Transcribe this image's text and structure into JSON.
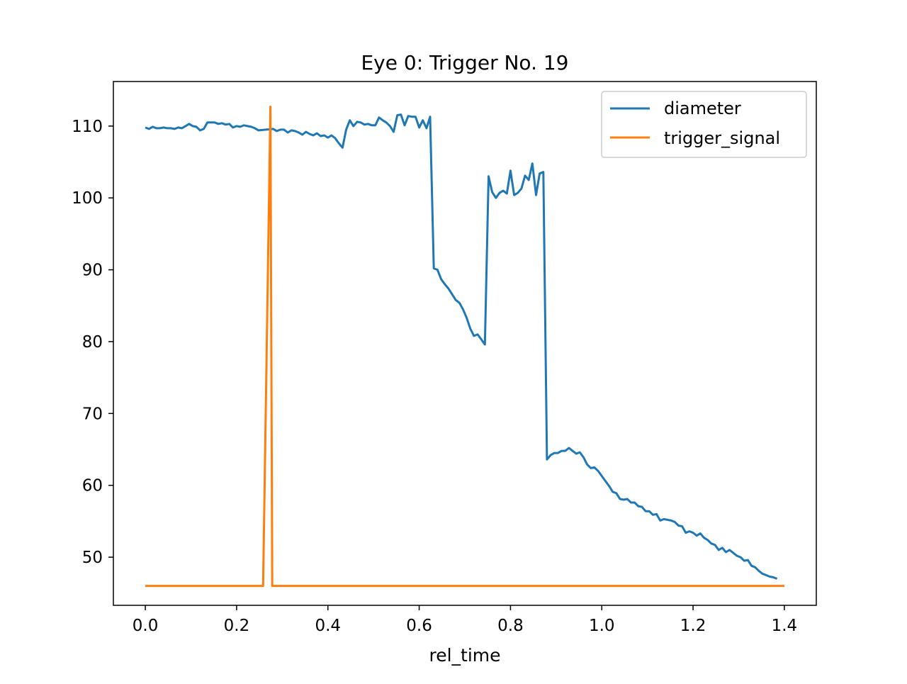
{
  "chart_data": {
    "type": "line",
    "title": "Eye 0: Trigger No. 19",
    "xlabel": "rel_time",
    "ylabel": "",
    "xlim": [
      -0.07,
      1.47
    ],
    "ylim": [
      43.3,
      116.2
    ],
    "xticks": [
      0.0,
      0.2,
      0.4,
      0.6,
      0.8,
      1.0,
      1.2,
      1.4
    ],
    "xtick_labels": [
      "0.0",
      "0.2",
      "0.4",
      "0.6",
      "0.8",
      "1.0",
      "1.2",
      "1.4"
    ],
    "yticks": [
      50,
      60,
      70,
      80,
      90,
      100,
      110
    ],
    "ytick_labels": [
      "50",
      "60",
      "70",
      "80",
      "90",
      "100",
      "110"
    ],
    "grid": false,
    "legend_position": "top-right",
    "series": [
      {
        "name": "diameter",
        "color": "#1f77b4",
        "points": [
          [
            0.0,
            109.8
          ],
          [
            0.008,
            109.6
          ],
          [
            0.016,
            109.9
          ],
          [
            0.024,
            109.7
          ],
          [
            0.032,
            109.7
          ],
          [
            0.04,
            109.8
          ],
          [
            0.048,
            109.7
          ],
          [
            0.056,
            109.7
          ],
          [
            0.064,
            109.6
          ],
          [
            0.072,
            109.8
          ],
          [
            0.08,
            109.7
          ],
          [
            0.088,
            110.0
          ],
          [
            0.096,
            110.3
          ],
          [
            0.104,
            110.0
          ],
          [
            0.112,
            109.9
          ],
          [
            0.12,
            109.4
          ],
          [
            0.128,
            109.6
          ],
          [
            0.136,
            110.5
          ],
          [
            0.144,
            110.5
          ],
          [
            0.152,
            110.5
          ],
          [
            0.16,
            110.3
          ],
          [
            0.168,
            110.4
          ],
          [
            0.176,
            110.2
          ],
          [
            0.184,
            110.3
          ],
          [
            0.192,
            109.8
          ],
          [
            0.2,
            110.0
          ],
          [
            0.208,
            109.9
          ],
          [
            0.216,
            110.1
          ],
          [
            0.224,
            110.0
          ],
          [
            0.232,
            109.9
          ],
          [
            0.24,
            109.7
          ],
          [
            0.248,
            109.4
          ],
          [
            0.28,
            109.6
          ],
          [
            0.288,
            109.3
          ],
          [
            0.296,
            109.5
          ],
          [
            0.304,
            109.5
          ],
          [
            0.312,
            109.1
          ],
          [
            0.32,
            109.4
          ],
          [
            0.328,
            109.3
          ],
          [
            0.336,
            109.1
          ],
          [
            0.344,
            108.8
          ],
          [
            0.352,
            109.2
          ],
          [
            0.36,
            108.9
          ],
          [
            0.368,
            108.7
          ],
          [
            0.376,
            109.0
          ],
          [
            0.384,
            108.6
          ],
          [
            0.392,
            108.7
          ],
          [
            0.4,
            108.4
          ],
          [
            0.408,
            108.7
          ],
          [
            0.416,
            108.3
          ],
          [
            0.424,
            107.6
          ],
          [
            0.432,
            107.0
          ],
          [
            0.44,
            109.5
          ],
          [
            0.448,
            110.8
          ],
          [
            0.456,
            110.0
          ],
          [
            0.464,
            110.6
          ],
          [
            0.472,
            110.5
          ],
          [
            0.48,
            110.2
          ],
          [
            0.488,
            110.3
          ],
          [
            0.496,
            110.1
          ],
          [
            0.504,
            110.1
          ],
          [
            0.512,
            111.2
          ],
          [
            0.52,
            110.8
          ],
          [
            0.528,
            110.5
          ],
          [
            0.536,
            110.0
          ],
          [
            0.544,
            109.2
          ],
          [
            0.552,
            111.5
          ],
          [
            0.56,
            111.6
          ],
          [
            0.568,
            110.1
          ],
          [
            0.576,
            111.4
          ],
          [
            0.584,
            111.3
          ],
          [
            0.592,
            111.3
          ],
          [
            0.6,
            109.8
          ],
          [
            0.608,
            110.8
          ],
          [
            0.616,
            109.7
          ],
          [
            0.624,
            111.3
          ],
          [
            0.632,
            90.2
          ],
          [
            0.64,
            90.0
          ],
          [
            0.648,
            88.7
          ],
          [
            0.656,
            88.0
          ],
          [
            0.664,
            87.4
          ],
          [
            0.672,
            86.6
          ],
          [
            0.68,
            85.8
          ],
          [
            0.688,
            85.4
          ],
          [
            0.696,
            84.5
          ],
          [
            0.704,
            83.3
          ],
          [
            0.712,
            81.8
          ],
          [
            0.72,
            80.8
          ],
          [
            0.728,
            81.0
          ],
          [
            0.736,
            80.3
          ],
          [
            0.744,
            79.6
          ],
          [
            0.752,
            103.0
          ],
          [
            0.76,
            100.8
          ],
          [
            0.768,
            100.0
          ],
          [
            0.776,
            100.7
          ],
          [
            0.784,
            101.0
          ],
          [
            0.792,
            100.6
          ],
          [
            0.8,
            103.8
          ],
          [
            0.808,
            100.4
          ],
          [
            0.816,
            100.7
          ],
          [
            0.824,
            101.3
          ],
          [
            0.832,
            103.1
          ],
          [
            0.84,
            102.5
          ],
          [
            0.848,
            104.8
          ],
          [
            0.856,
            100.4
          ],
          [
            0.864,
            103.4
          ],
          [
            0.872,
            103.6
          ],
          [
            0.88,
            63.6
          ],
          [
            0.888,
            64.2
          ],
          [
            0.896,
            64.5
          ],
          [
            0.904,
            64.5
          ],
          [
            0.912,
            64.8
          ],
          [
            0.92,
            64.8
          ],
          [
            0.928,
            65.2
          ],
          [
            0.936,
            64.8
          ],
          [
            0.944,
            64.4
          ],
          [
            0.952,
            64.6
          ],
          [
            0.96,
            63.9
          ],
          [
            0.968,
            62.9
          ],
          [
            0.976,
            62.4
          ],
          [
            0.984,
            62.5
          ],
          [
            0.992,
            62.0
          ],
          [
            1.0,
            61.3
          ],
          [
            1.008,
            60.6
          ],
          [
            1.016,
            59.9
          ],
          [
            1.024,
            59.1
          ],
          [
            1.032,
            58.9
          ],
          [
            1.04,
            58.1
          ],
          [
            1.048,
            58.0
          ],
          [
            1.056,
            58.1
          ],
          [
            1.064,
            57.6
          ],
          [
            1.072,
            57.6
          ],
          [
            1.08,
            57.1
          ],
          [
            1.088,
            57.0
          ],
          [
            1.096,
            56.4
          ],
          [
            1.104,
            56.4
          ],
          [
            1.112,
            55.9
          ],
          [
            1.12,
            56.0
          ],
          [
            1.128,
            55.1
          ],
          [
            1.136,
            55.3
          ],
          [
            1.144,
            55.2
          ],
          [
            1.152,
            55.1
          ],
          [
            1.16,
            54.9
          ],
          [
            1.168,
            54.4
          ],
          [
            1.176,
            54.3
          ],
          [
            1.184,
            53.4
          ],
          [
            1.192,
            53.6
          ],
          [
            1.2,
            53.4
          ],
          [
            1.208,
            53.0
          ],
          [
            1.216,
            53.3
          ],
          [
            1.224,
            52.7
          ],
          [
            1.232,
            52.4
          ],
          [
            1.24,
            51.9
          ],
          [
            1.248,
            51.7
          ],
          [
            1.256,
            51.0
          ],
          [
            1.264,
            51.3
          ],
          [
            1.272,
            50.7
          ],
          [
            1.28,
            51.0
          ],
          [
            1.288,
            50.6
          ],
          [
            1.296,
            50.2
          ],
          [
            1.304,
            50.0
          ],
          [
            1.312,
            49.5
          ],
          [
            1.32,
            49.6
          ],
          [
            1.328,
            48.8
          ],
          [
            1.336,
            48.6
          ],
          [
            1.344,
            48.1
          ],
          [
            1.352,
            47.7
          ],
          [
            1.36,
            47.5
          ],
          [
            1.368,
            47.3
          ],
          [
            1.376,
            47.2
          ],
          [
            1.384,
            47.0
          ]
        ]
      },
      {
        "name": "trigger_signal",
        "color": "#ff7f0e",
        "points": [
          [
            0.0,
            46.0
          ],
          [
            0.258,
            46.0
          ],
          [
            0.274,
            112.7
          ],
          [
            0.278,
            46.0
          ],
          [
            1.4,
            46.0
          ]
        ]
      }
    ]
  }
}
